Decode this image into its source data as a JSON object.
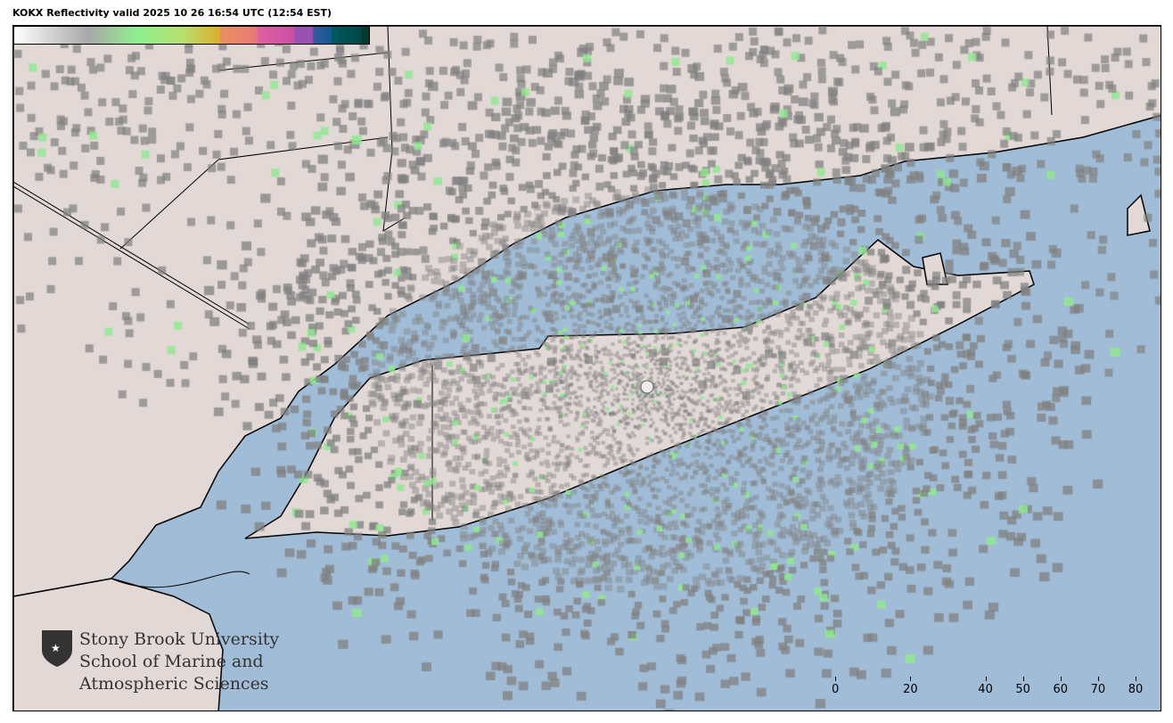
{
  "title": "KOKX Reflectivity valid 2025 10 26 16:54 UTC (12:54 EST)",
  "logo": {
    "lines": [
      "Stony Brook University",
      "School of Marine and",
      "Atmospheric Sciences"
    ]
  },
  "colorbar": {
    "range": [
      -15,
      80
    ],
    "ticks": [
      "0",
      "20",
      "40",
      "50",
      "60",
      "70",
      "80"
    ],
    "tick_values": [
      0,
      20,
      40,
      50,
      60,
      70,
      80
    ],
    "stops": [
      {
        "v": -15,
        "c": "#ffffff"
      },
      {
        "v": 5,
        "c": "#a8a8a8"
      },
      {
        "v": 18,
        "c": "#8ef08e"
      },
      {
        "v": 30,
        "c": "#b8e070"
      },
      {
        "v": 40,
        "c": "#dcb030"
      },
      {
        "v": 40.1,
        "c": "#e89060"
      },
      {
        "v": 50,
        "c": "#e87a78"
      },
      {
        "v": 50.1,
        "c": "#e060a0"
      },
      {
        "v": 60,
        "c": "#c850a8"
      },
      {
        "v": 60.1,
        "c": "#9a50b0"
      },
      {
        "v": 65,
        "c": "#9a50b0"
      },
      {
        "v": 65.1,
        "c": "#3a5aa0"
      },
      {
        "v": 70,
        "c": "#105a90"
      },
      {
        "v": 70.1,
        "c": "#005a60"
      },
      {
        "v": 78,
        "c": "#004848"
      },
      {
        "v": 78.1,
        "c": "#003a2a"
      },
      {
        "v": 80,
        "c": "#003a2a"
      }
    ]
  },
  "colors": {
    "water": "#a0bcd6",
    "land": "#e2d8d6",
    "echo_gray": "#808080",
    "echo_green": "#90e890",
    "boundary": "#000000"
  },
  "radar_site": "KOKX"
}
